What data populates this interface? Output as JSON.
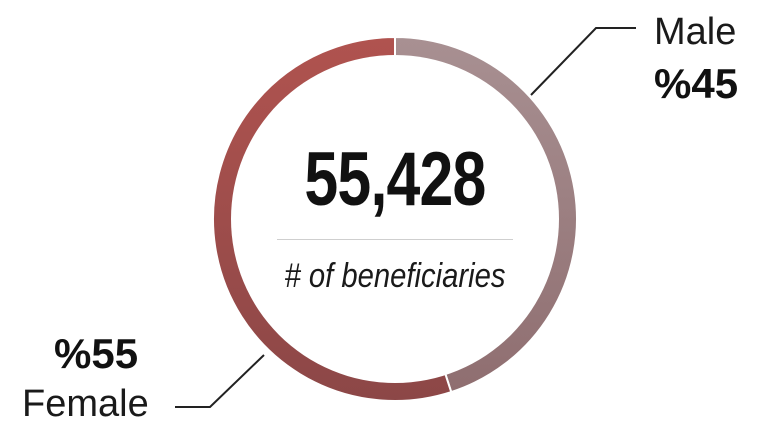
{
  "chart_data": {
    "type": "pie",
    "variant": "donut",
    "center": {
      "value": "55,428",
      "caption": "# of beneficiaries"
    },
    "slices": [
      {
        "name": "Male",
        "label": "%45",
        "value": 45,
        "color": "#9b7b7d"
      },
      {
        "name": "Female",
        "label": "%55",
        "value": 55,
        "color": "#a0504f"
      }
    ],
    "legend": "callouts"
  }
}
